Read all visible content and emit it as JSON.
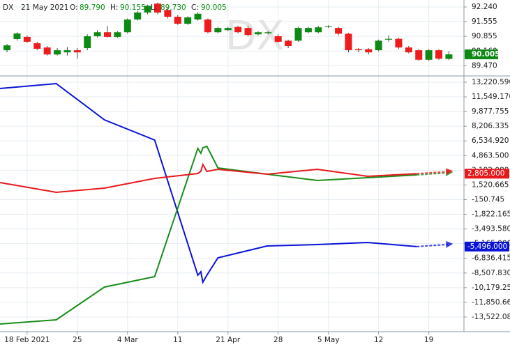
{
  "header": {
    "symbol": "DX",
    "date": "21 May 2021",
    "items": [
      {
        "label": "O:",
        "value": "89.790"
      },
      {
        "label": "H:",
        "value": "90.155"
      },
      {
        "label": "L:",
        "value": "89.730"
      },
      {
        "label": "C:",
        "value": "90.005"
      }
    ]
  },
  "chart_data": [
    {
      "type": "candlestick",
      "watermark": "DX",
      "up_color": "#0d8a14",
      "down_color": "#ee1c1c",
      "open": [
        90.2,
        90.73,
        90.83,
        90.53,
        90.33,
        90.0,
        90.1,
        90.2,
        90.3,
        90.86,
        91.05,
        90.83,
        91.05,
        91.65,
        91.98,
        92.4,
        92.1,
        91.78,
        91.45,
        91.65,
        91.65,
        91.05,
        91.15,
        91.3,
        91.25,
        90.95,
        91.0,
        90.86,
        90.65,
        90.65,
        91.05,
        91.05,
        91.3,
        91.25,
        90.98,
        90.25,
        90.25,
        90.2,
        90.7,
        90.74,
        90.33,
        90.2,
        89.75,
        90.2,
        89.79
      ],
      "high": [
        90.5,
        91.05,
        90.9,
        90.6,
        90.4,
        90.3,
        90.35,
        90.3,
        90.95,
        91.15,
        91.35,
        91.1,
        91.7,
        92.05,
        92.35,
        92.45,
        92.2,
        91.85,
        91.8,
        91.98,
        91.7,
        91.3,
        91.3,
        91.35,
        91.35,
        91.1,
        91.1,
        90.95,
        90.7,
        91.3,
        91.3,
        91.35,
        91.38,
        91.3,
        91.02,
        90.3,
        90.3,
        90.7,
        90.9,
        90.8,
        90.4,
        90.25,
        90.25,
        90.25,
        90.155
      ],
      "low": [
        90.1,
        90.65,
        90.55,
        90.2,
        89.95,
        89.95,
        89.95,
        89.8,
        90.2,
        90.8,
        90.8,
        90.78,
        91.0,
        91.6,
        91.9,
        91.9,
        91.7,
        91.4,
        91.4,
        91.6,
        91.0,
        91.0,
        91.1,
        91.0,
        90.85,
        90.9,
        90.95,
        90.55,
        90.3,
        90.6,
        91.0,
        91.0,
        91.25,
        90.9,
        90.1,
        90.1,
        90.0,
        90.15,
        90.6,
        90.25,
        90.05,
        89.7,
        89.7,
        89.75,
        89.73
      ],
      "close": [
        90.43,
        90.99,
        90.6,
        90.27,
        90.0,
        90.2,
        90.2,
        90.1,
        90.86,
        91.05,
        90.83,
        91.05,
        91.65,
        91.98,
        92.3,
        91.98,
        91.78,
        91.45,
        91.75,
        91.92,
        91.05,
        91.25,
        91.25,
        91.05,
        90.92,
        91.05,
        91.05,
        90.6,
        90.4,
        91.25,
        91.25,
        91.28,
        91.33,
        90.98,
        90.2,
        90.2,
        90.1,
        90.65,
        90.74,
        90.33,
        90.1,
        89.75,
        90.2,
        89.8,
        90.005
      ],
      "last_price": {
        "value": 90.005,
        "label": "90.005"
      },
      "xlim": [
        -0.7,
        45.5
      ],
      "ylim": [
        89.02,
        92.57
      ],
      "yticks": [
        {
          "value": 92.24,
          "label": "92.240"
        },
        {
          "value": 91.555,
          "label": "91.555"
        },
        {
          "value": 90.855,
          "label": "90.855"
        },
        {
          "value": 90.16,
          "label": "90.160"
        },
        {
          "value": 89.47,
          "label": "89.470"
        }
      ],
      "grid": true
    },
    {
      "type": "line",
      "x": [
        -0.7,
        4.9,
        9.7,
        14.7,
        19,
        19.3,
        19.5,
        19.9,
        21,
        25.9,
        30.9,
        35.9,
        40.8
      ],
      "series": [
        {
          "color": "#0a14d8",
          "values": [
            12506,
            13062,
            8935,
            6634,
            -8762,
            -8365,
            -9555,
            -8762,
            -6778,
            -5428,
            -5270,
            -5032,
            -5496
          ],
          "last_value_label": "-5,496.000"
        },
        {
          "color": "#1a8c1a",
          "values": [
            -14318,
            -13841,
            -10110,
            -8920,
            5682,
            5127,
            5761,
            5920,
            3459,
            2745,
            2031,
            2348,
            2665
          ]
        },
        {
          "color": "#e8191d",
          "values": [
            1793,
            682,
            1158,
            2269,
            2824,
            3062,
            3856,
            3062,
            3300,
            2745,
            3300,
            2507,
            2805
          ],
          "last_value_label": "2,805.000"
        }
      ],
      "xlim": [
        -0.7,
        45.5
      ],
      "ylim": [
        -15110,
        13855
      ],
      "yticks": [
        {
          "value": 13220.59,
          "label": "13,220.590"
        },
        {
          "value": 11549.17,
          "label": "11,549.170"
        },
        {
          "value": 9877.755,
          "label": "9,877.755"
        },
        {
          "value": 8206.335,
          "label": "8,206.335"
        },
        {
          "value": 6534.92,
          "label": "6,534.920"
        },
        {
          "value": 4863.5,
          "label": "4,863.500"
        },
        {
          "value": 3192.08,
          "label": "3,192.080"
        },
        {
          "value": 1520.665,
          "label": "1,520.665"
        },
        {
          "value": -150.745,
          "label": "-150.745"
        },
        {
          "value": -1822.165,
          "label": "-1,822.165"
        },
        {
          "value": -3493.58,
          "label": "-3,493.580"
        },
        {
          "value": -5165,
          "label": "-5,165.000"
        },
        {
          "value": -6836.415,
          "label": "-6,836.415"
        },
        {
          "value": -8507.83,
          "label": "-8,507.830"
        },
        {
          "value": -10179.25,
          "label": "-10,179.250"
        },
        {
          "value": -11850.665,
          "label": "-11,850.665"
        },
        {
          "value": -13522.085,
          "label": "-13,522.085"
        }
      ],
      "xticks": [
        {
          "value": 2,
          "label": "18 Feb 2021"
        },
        {
          "value": 7,
          "label": "25"
        },
        {
          "value": 12,
          "label": "4 Mar"
        },
        {
          "value": 17,
          "label": "11"
        },
        {
          "value": 22,
          "label": "21 Apr"
        },
        {
          "value": 27,
          "label": "28"
        },
        {
          "value": 32,
          "label": "5 May"
        },
        {
          "value": 37,
          "label": "12"
        },
        {
          "value": 42,
          "label": "19"
        }
      ],
      "grid": true
    }
  ]
}
